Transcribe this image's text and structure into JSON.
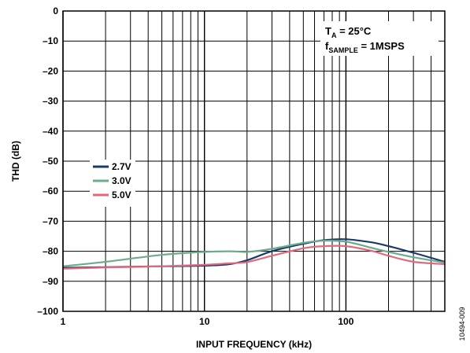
{
  "chart_data": {
    "type": "line",
    "xlabel": "INPUT FREQUENCY (kHz)",
    "ylabel": "THD (dB)",
    "x_scale": "log",
    "xlim": [
      1,
      500
    ],
    "ylim": [
      -100,
      0
    ],
    "x_ticks": [
      1,
      10,
      100
    ],
    "x_tick_labels": [
      "1",
      "10",
      "100"
    ],
    "y_ticks": [
      0,
      -10,
      -20,
      -30,
      -40,
      -50,
      -60,
      -70,
      -80,
      -90,
      -100
    ],
    "y_tick_labels": [
      "0",
      "–10",
      "–20",
      "–30",
      "–40",
      "–50",
      "–60",
      "–70",
      "–80",
      "–90",
      "–100"
    ],
    "grid": true,
    "legend_position": "center-left",
    "annotation": {
      "line1_main": "T",
      "line1_sub": "A",
      "line1_rest": " = 25°C",
      "line2_main": "f",
      "line2_sub": "SAMPLE",
      "line2_rest": " = 1MSPS"
    },
    "figure_id": "10494-009",
    "series": [
      {
        "name": "2.7V",
        "color": "#1b3a6b",
        "x": [
          1,
          2,
          5,
          10,
          15,
          20,
          30,
          50,
          70,
          100,
          150,
          200,
          300,
          500
        ],
        "y": [
          -85.5,
          -85.3,
          -85.0,
          -84.8,
          -84.3,
          -83.0,
          -80.0,
          -77.5,
          -76.3,
          -76.0,
          -77.0,
          -78.3,
          -80.5,
          -83.5
        ]
      },
      {
        "name": "3.0V",
        "color": "#6dab8b",
        "x": [
          1,
          2,
          5,
          10,
          15,
          20,
          30,
          50,
          70,
          100,
          150,
          200,
          300,
          500
        ],
        "y": [
          -85.0,
          -83.5,
          -81.2,
          -80.2,
          -80.0,
          -80.2,
          -79.2,
          -77.2,
          -76.5,
          -76.8,
          -78.8,
          -80.2,
          -82.0,
          -83.8
        ]
      },
      {
        "name": "5.0V",
        "color": "#e0697c",
        "x": [
          1,
          2,
          5,
          10,
          15,
          20,
          30,
          50,
          70,
          100,
          150,
          200,
          300,
          500
        ],
        "y": [
          -85.8,
          -85.4,
          -85.0,
          -84.5,
          -84.0,
          -83.6,
          -81.5,
          -79.0,
          -78.3,
          -78.3,
          -79.8,
          -81.5,
          -83.5,
          -84.3
        ]
      }
    ]
  }
}
